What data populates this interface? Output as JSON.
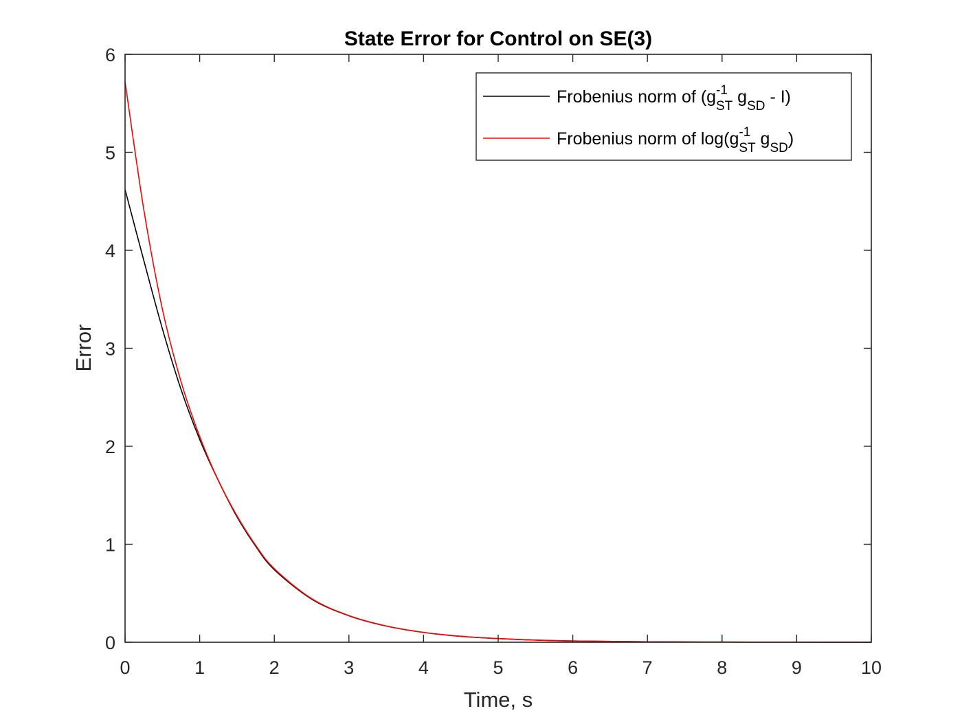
{
  "chart_data": {
    "type": "line",
    "title": "State Error for Control on SE(3)",
    "xlabel": "Time, s",
    "ylabel": "Error",
    "xlim": [
      0,
      10
    ],
    "ylim": [
      0,
      6
    ],
    "xticks": [
      "0",
      "1",
      "2",
      "3",
      "4",
      "5",
      "6",
      "7",
      "8",
      "9",
      "10"
    ],
    "yticks": [
      "0",
      "1",
      "2",
      "3",
      "4",
      "5",
      "6"
    ],
    "grid": false,
    "legend_position": "top-right",
    "series": [
      {
        "name": "Frobenius norm of (g_ST^-1 g_SD - I)",
        "legend_parts": {
          "prefix": "Frobenius norm of (g",
          "sup": "-1",
          "sub1": "ST",
          "mid": " g",
          "sub2": "SD",
          "suffix": " - I)"
        },
        "color": "#000000",
        "x": [
          0,
          0.25,
          0.5,
          0.75,
          1,
          1.25,
          1.5,
          1.75,
          2,
          2.5,
          3,
          3.5,
          4,
          4.5,
          5,
          5.5,
          6,
          7,
          8,
          9,
          10
        ],
        "y": [
          4.62,
          3.9,
          3.2,
          2.58,
          2.07,
          1.65,
          1.28,
          0.98,
          0.74,
          0.44,
          0.27,
          0.165,
          0.1,
          0.06,
          0.037,
          0.022,
          0.013,
          0.005,
          0.002,
          0.001,
          0.0003
        ]
      },
      {
        "name": "Frobenius norm of log(g_ST^-1 g_SD)",
        "legend_parts": {
          "prefix": "Frobenius norm of log(g",
          "sup": "-1",
          "sub1": "ST",
          "mid": " g",
          "sub2": "SD",
          "suffix": ")"
        },
        "color": "#ff0000",
        "x": [
          0,
          0.25,
          0.5,
          0.75,
          1,
          1.25,
          1.5,
          1.75,
          2,
          2.5,
          3,
          3.5,
          4,
          4.5,
          5,
          5.5,
          6,
          7,
          8,
          9,
          10
        ],
        "y": [
          5.72,
          4.42,
          3.4,
          2.66,
          2.1,
          1.65,
          1.29,
          0.99,
          0.75,
          0.445,
          0.272,
          0.166,
          0.101,
          0.061,
          0.037,
          0.022,
          0.013,
          0.005,
          0.002,
          0.001,
          0.0003
        ]
      }
    ]
  }
}
